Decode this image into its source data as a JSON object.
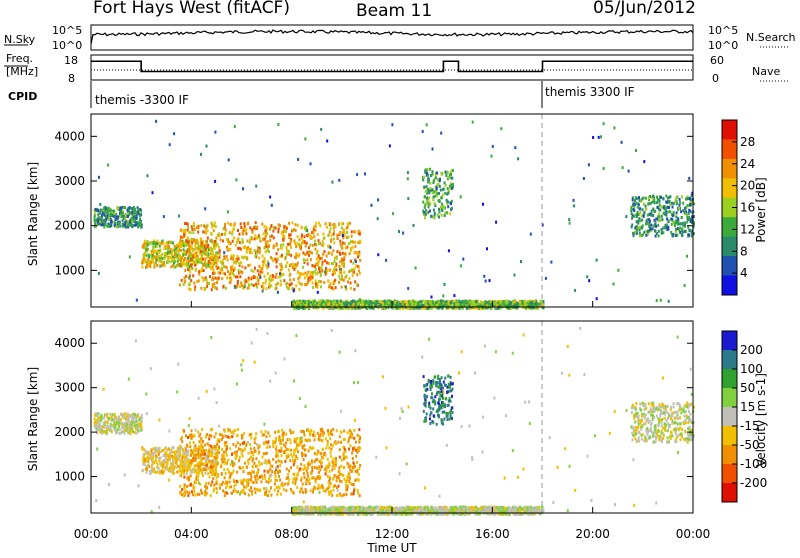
{
  "header": {
    "station": "Fort Hays West (fitACF)",
    "beam": "Beam 11",
    "date": "05/Jun/2012"
  },
  "noise_panel": {
    "left_label": "N.Sky",
    "left_ticks": [
      "10^5",
      "10^0"
    ],
    "right_ticks": [
      "10^5",
      "10^0"
    ],
    "right_label": "N.Search"
  },
  "freq_panel": {
    "left_label_1": "Freq.",
    "left_label_2": "[MHz]",
    "left_ticks": [
      "18",
      "8"
    ],
    "right_ticks": [
      "60",
      "0"
    ],
    "right_label": "Nave",
    "freq_steps": [
      {
        "t": 0.0,
        "mhz": 15.5
      },
      {
        "t": 2.0,
        "mhz": 11.4
      },
      {
        "t": 14.05,
        "mhz": 15.5
      },
      {
        "t": 14.65,
        "mhz": 11.4
      },
      {
        "t": 18.0,
        "mhz": 15.5
      },
      {
        "t": 24.0,
        "mhz": 15.5
      }
    ]
  },
  "cpid_panel": {
    "label": "CPID",
    "segments": [
      {
        "start": 0.0,
        "label": "themis -3300 IF"
      },
      {
        "start": 18.0,
        "label": "themis 3300 IF"
      }
    ]
  },
  "x_axis": {
    "label": "Time UT",
    "ticks": [
      "00:00",
      "04:00",
      "08:00",
      "12:00",
      "16:00",
      "20:00",
      "00:00"
    ]
  },
  "power_panel": {
    "ylabel": "Slant Range [km]",
    "yticks": [
      "4000",
      "3000",
      "2000",
      "1000"
    ],
    "colorbar_label": "Power [dB]",
    "colorbar_ticks": [
      "28",
      "24",
      "20",
      "16",
      "12",
      "8",
      "4"
    ],
    "colors": [
      "#1010e0",
      "#2050b0",
      "#2a8a6a",
      "#3aaa3a",
      "#9ad020",
      "#f0c000",
      "#f09000",
      "#f05000",
      "#e01000"
    ]
  },
  "velocity_panel": {
    "ylabel": "Slant Range [km]",
    "yticks": [
      "4000",
      "3000",
      "2000",
      "1000"
    ],
    "colorbar_label": "Velocity [m s-1]",
    "colorbar_ticks": [
      "200",
      "100",
      "50",
      "15",
      "-15",
      "-50",
      "-100",
      "-200"
    ],
    "colors": [
      "#1a1ad0",
      "#2a7a8a",
      "#30a030",
      "#80d040",
      "#c0c0b8",
      "#f0c000",
      "#f09000",
      "#f05000",
      "#e01000"
    ]
  },
  "chart_data": {
    "type": "heatmap",
    "x_range_hours": [
      0,
      24
    ],
    "y_range_km": [
      180,
      4500
    ],
    "regions": [
      {
        "name": "pre-dawn band",
        "t0": 0.1,
        "t1": 2.0,
        "r0": 2000,
        "r1": 2450,
        "power_db": 10,
        "velocity": 0
      },
      {
        "name": "dawn arc",
        "t0": 2.0,
        "t1": 5.0,
        "r0": 1100,
        "r1": 1700,
        "power_db": 18,
        "velocity": -40
      },
      {
        "name": "main echo",
        "t0": 3.5,
        "t1": 10.7,
        "r0": 600,
        "r1": 2100,
        "power_db": 22,
        "velocity": -90
      },
      {
        "name": "midday arc",
        "t0": 13.2,
        "t1": 14.4,
        "r0": 2200,
        "r1": 3300,
        "power_db": 12,
        "velocity": 150
      },
      {
        "name": "ground scatter",
        "t0": 8.0,
        "t1": 18.0,
        "r0": 180,
        "r1": 350,
        "power_db": 14,
        "velocity": 10
      },
      {
        "name": "evening band",
        "t0": 21.5,
        "t1": 24.0,
        "r0": 1800,
        "r1": 2700,
        "power_db": 10,
        "velocity": 0
      }
    ]
  }
}
